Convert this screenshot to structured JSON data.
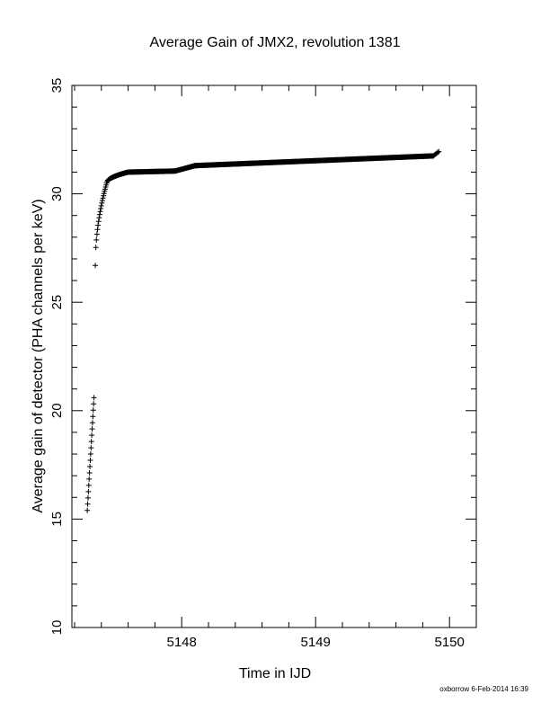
{
  "chart_data": {
    "type": "scatter",
    "title": "Average Gain of JMX2, revolution 1381",
    "xlabel": "Time in IJD",
    "ylabel": "Average gain of detector (PHA channels per keV)",
    "xlim": [
      5147.18,
      5150.2
    ],
    "ylim": [
      10,
      35
    ],
    "xticks": [
      5148,
      5149,
      5150
    ],
    "yticks": [
      10,
      15,
      20,
      25,
      30,
      35
    ],
    "xtick_labels": [
      "5148",
      "5149",
      "5150"
    ],
    "ytick_labels": [
      "10",
      "15",
      "20",
      "25",
      "30",
      "35"
    ],
    "marker": "plus",
    "grid": false,
    "legend": "none",
    "segments": [
      {
        "x_start": 5147.295,
        "x_end": 5147.345,
        "y_start": 15.4,
        "y_end": 20.6,
        "count": 19,
        "spacing": "linear"
      },
      {
        "x_start": 5147.355,
        "x_end": 5147.44,
        "y_start": 26.7,
        "y_end": 30.5,
        "count": 22,
        "spacing": "sqrt"
      },
      {
        "x_start": 5147.44,
        "x_end": 5147.6,
        "y_start": 30.5,
        "y_end": 31.0,
        "count": 40,
        "spacing": "sqrt"
      },
      {
        "x_start": 5147.6,
        "x_end": 5147.95,
        "y_start": 31.0,
        "y_end": 31.05,
        "count": 80,
        "spacing": "linear"
      },
      {
        "x_start": 5147.95,
        "x_end": 5148.1,
        "y_start": 31.05,
        "y_end": 31.3,
        "count": 40,
        "spacing": "linear"
      },
      {
        "x_start": 5148.1,
        "x_end": 5149.88,
        "y_start": 31.3,
        "y_end": 31.75,
        "count": 400,
        "spacing": "linear"
      },
      {
        "x_start": 5149.88,
        "x_end": 5149.92,
        "y_start": 31.75,
        "y_end": 31.95,
        "count": 6,
        "spacing": "linear"
      }
    ]
  },
  "footer": "oxborrow  6-Feb-2014 16:39"
}
